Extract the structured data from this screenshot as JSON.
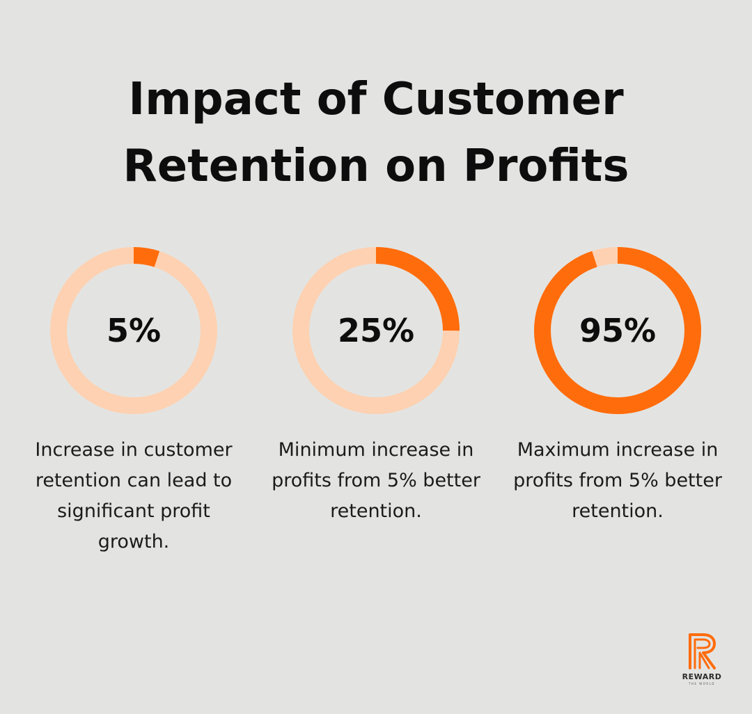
{
  "chart_data": {
    "type": "pie",
    "variant": "donut",
    "title": "Impact of Customer Retention on Profits",
    "title_lines": [
      "Impact of Customer",
      "Retention on Profits"
    ],
    "series": [
      {
        "value": 5,
        "label": "5%",
        "description": "Increase in customer retention can lead to significant profit growth."
      },
      {
        "value": 25,
        "label": "25%",
        "description": "Minimum increase in profits from 5% better retention."
      },
      {
        "value": 95,
        "label": "95%",
        "description": "Maximum increase in profits from 5% better retention."
      }
    ],
    "max": 100
  },
  "colors": {
    "background": "#e3e4e2",
    "filled": "#ff6c0c",
    "track": "#fdd1b1",
    "text": "#0d0d0d"
  },
  "logo": {
    "brand": "REWARD",
    "tagline": "THE WORLD",
    "icon": "reward-r-logo-icon"
  }
}
